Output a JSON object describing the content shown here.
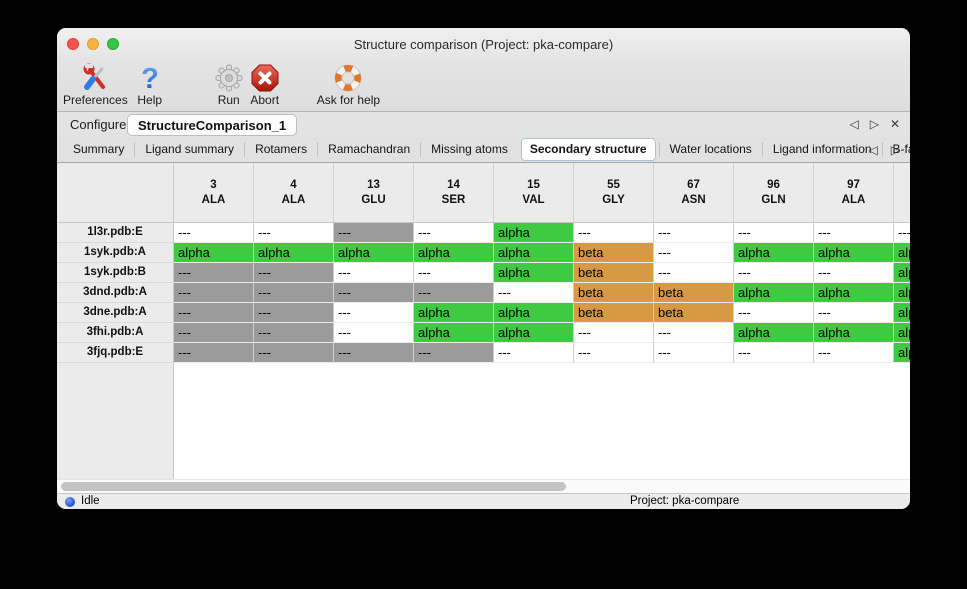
{
  "window": {
    "title": "Structure comparison (Project: pka-compare)"
  },
  "toolbar": {
    "items": [
      {
        "label": "Preferences",
        "icon": "tools-icon"
      },
      {
        "label": "Help",
        "icon": "question-mark-icon"
      },
      {
        "label": "Run",
        "icon": "gear-icon"
      },
      {
        "label": "Abort",
        "icon": "stop-x-icon"
      },
      {
        "label": "Ask for help",
        "icon": "lifebuoy-icon"
      }
    ]
  },
  "main_tabs": {
    "tabs": [
      {
        "label": "Configure",
        "selected": false
      },
      {
        "label": "StructureComparison_1",
        "selected": true
      }
    ],
    "nav_left": "◁",
    "nav_right": "▷",
    "close": "✕"
  },
  "sub_tabs": {
    "tabs": [
      {
        "label": "Summary",
        "selected": false
      },
      {
        "label": "Ligand summary",
        "selected": false
      },
      {
        "label": "Rotamers",
        "selected": false
      },
      {
        "label": "Ramachandran",
        "selected": false
      },
      {
        "label": "Missing atoms",
        "selected": false
      },
      {
        "label": "Secondary structure",
        "selected": true
      },
      {
        "label": "Water locations",
        "selected": false
      },
      {
        "label": "Ligand information",
        "selected": false
      },
      {
        "label": "B-factors",
        "selected": false
      }
    ],
    "nav_left": "◁",
    "nav_right": "▷"
  },
  "table": {
    "columns": [
      {
        "number": "3",
        "residue": "ALA"
      },
      {
        "number": "4",
        "residue": "ALA"
      },
      {
        "number": "13",
        "residue": "GLU"
      },
      {
        "number": "14",
        "residue": "SER"
      },
      {
        "number": "15",
        "residue": "VAL"
      },
      {
        "number": "55",
        "residue": "GLY"
      },
      {
        "number": "67",
        "residue": "ASN"
      },
      {
        "number": "96",
        "residue": "GLN"
      },
      {
        "number": "97",
        "residue": "ALA"
      },
      {
        "number": "",
        "residue": ""
      }
    ],
    "cell_text": {
      "none": "---",
      "masked": "---",
      "alpha": "alpha",
      "beta": "beta"
    },
    "cell_colors": {
      "none": "#ffffff",
      "masked": "#9b9b9b",
      "alpha": "#3ecb41",
      "beta": "#d69a45"
    },
    "rows": [
      {
        "label": "1l3r.pdb:E",
        "cells": [
          "none",
          "none",
          "masked",
          "none",
          "alpha",
          "none",
          "none",
          "none",
          "none",
          "none"
        ]
      },
      {
        "label": "1syk.pdb:A",
        "cells": [
          "alpha",
          "alpha",
          "alpha",
          "alpha",
          "alpha",
          "beta",
          "none",
          "alpha",
          "alpha",
          "alpha"
        ]
      },
      {
        "label": "1syk.pdb:B",
        "cells": [
          "masked",
          "masked",
          "none",
          "none",
          "alpha",
          "beta",
          "none",
          "none",
          "none",
          "alpha"
        ]
      },
      {
        "label": "3dnd.pdb:A",
        "cells": [
          "masked",
          "masked",
          "masked",
          "masked",
          "none",
          "beta",
          "beta",
          "alpha",
          "alpha",
          "alpha"
        ]
      },
      {
        "label": "3dne.pdb:A",
        "cells": [
          "masked",
          "masked",
          "none",
          "alpha",
          "alpha",
          "beta",
          "beta",
          "none",
          "none",
          "alpha"
        ]
      },
      {
        "label": "3fhi.pdb:A",
        "cells": [
          "masked",
          "masked",
          "none",
          "alpha",
          "alpha",
          "none",
          "none",
          "alpha",
          "alpha",
          "alpha"
        ]
      },
      {
        "label": "3fjq.pdb:E",
        "cells": [
          "masked",
          "masked",
          "masked",
          "masked",
          "none",
          "none",
          "none",
          "none",
          "none",
          "alpha"
        ]
      }
    ]
  },
  "statusbar": {
    "status": "Idle",
    "project": "Project: pka-compare"
  }
}
